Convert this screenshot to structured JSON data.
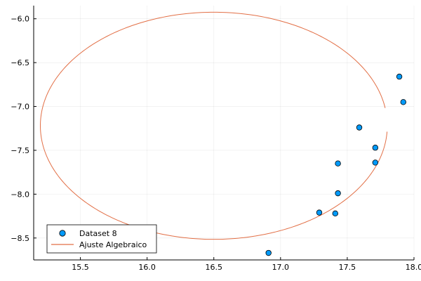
{
  "chart_data": {
    "type": "scatter",
    "title": "",
    "xlabel": "",
    "ylabel": "",
    "xlim": [
      15.15,
      18.0
    ],
    "ylim": [
      -8.75,
      -5.85
    ],
    "x_ticks": [
      15.5,
      16.0,
      16.5,
      17.0,
      17.5,
      18.0
    ],
    "x_tick_labels": [
      "15.5",
      "16.0",
      "16.5",
      "17.0",
      "17.5",
      "18.0"
    ],
    "y_ticks": [
      -6.0,
      -6.5,
      -7.0,
      -7.5,
      -8.0,
      -8.5
    ],
    "y_tick_labels": [
      "−6.0",
      "−6.5",
      "−7.0",
      "−7.5",
      "−8.0",
      "−8.5"
    ],
    "grid": true,
    "legend_position": "bottom-left",
    "series": [
      {
        "name": "Dataset 8",
        "kind": "scatter",
        "color": "#009AFA",
        "points": [
          [
            17.89,
            -6.66
          ],
          [
            17.92,
            -6.95
          ],
          [
            17.59,
            -7.24
          ],
          [
            17.71,
            -7.47
          ],
          [
            17.71,
            -7.64
          ],
          [
            17.43,
            -7.65
          ],
          [
            17.43,
            -7.99
          ],
          [
            17.29,
            -8.21
          ],
          [
            17.41,
            -8.22
          ],
          [
            16.91,
            -8.67
          ]
        ]
      },
      {
        "name": "Ajuste Algebraico",
        "kind": "line",
        "color": "#E26F46",
        "curve": "ellipse",
        "center": [
          16.5,
          -7.22
        ],
        "radius_x": 1.3,
        "radius_y": 1.295,
        "open_angle_start_deg": -3,
        "open_angle_end_deg": 9
      }
    ]
  }
}
